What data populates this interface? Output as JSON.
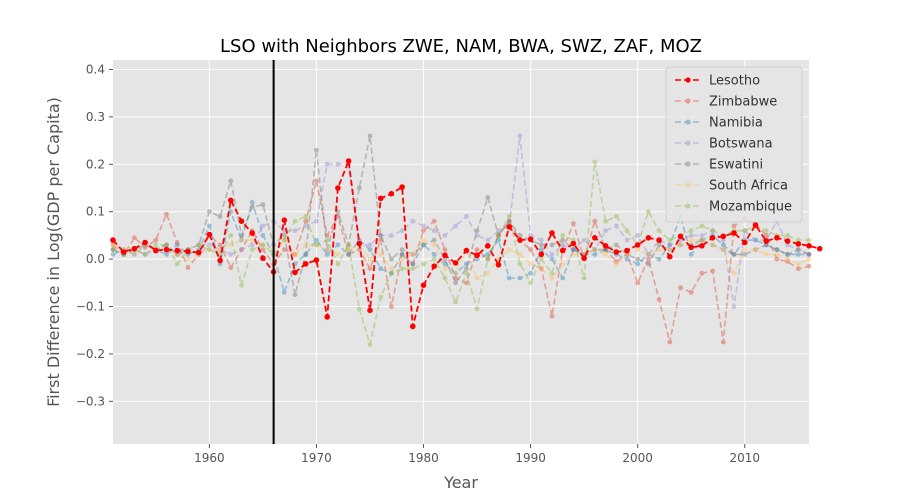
{
  "chart_data": {
    "type": "line",
    "title": "LSO with Neighbors ZWE, NAM, BWA, SWZ, ZAF, MOZ",
    "xlabel": "Year",
    "ylabel": "First Difference in Log(GDP per Capita)",
    "xlim": [
      1951,
      2016
    ],
    "ylim": [
      -0.39,
      0.42
    ],
    "xticks": [
      1960,
      1970,
      1980,
      1990,
      2000,
      2010
    ],
    "yticks": [
      -0.3,
      -0.2,
      -0.1,
      0.0,
      0.1,
      0.2,
      0.3,
      0.4
    ],
    "ytick_labels": [
      "−0.3",
      "−0.2",
      "−0.1",
      "0.0",
      "0.1",
      "0.2",
      "0.3",
      "0.4"
    ],
    "vline_x": 1966,
    "grid": true,
    "legend_position": "top-right",
    "series": [
      {
        "name": "Lesotho",
        "color": "#ff0000",
        "opacity": 1.0,
        "highlight": true,
        "start_year": 1951,
        "values": [
          0.04,
          0.015,
          0.022,
          0.035,
          0.018,
          0.02,
          0.018,
          0.016,
          0.014,
          0.052,
          -0.003,
          0.124,
          0.08,
          0.055,
          0.002,
          -0.027,
          0.082,
          -0.028,
          -0.01,
          -0.002,
          -0.122,
          0.15,
          0.207,
          0.033,
          -0.108,
          0.128,
          0.138,
          0.152,
          -0.142,
          -0.055,
          -0.015,
          0.008,
          -0.008,
          0.018,
          0.008,
          0.028,
          -0.012,
          0.068,
          0.04,
          0.042,
          0.01,
          0.055,
          0.018,
          0.033,
          0.002,
          0.045,
          0.028,
          0.015,
          0.018,
          0.03,
          0.045,
          0.04,
          0.005,
          0.048,
          0.025,
          0.028,
          0.045,
          0.048,
          0.055,
          0.035,
          0.072,
          0.038,
          0.045,
          0.038,
          0.032,
          0.028,
          0.022
        ]
      },
      {
        "name": "Zimbabwe",
        "color": "#e24a33",
        "opacity": 0.45,
        "highlight": false,
        "start_year": 1951,
        "values": [
          0.03,
          0.01,
          0.045,
          0.025,
          0.04,
          0.095,
          0.035,
          -0.018,
          0.01,
          0.05,
          0.03,
          -0.018,
          0.02,
          0.06,
          0.02,
          -0.01,
          0.02,
          0.01,
          0.08,
          0.165,
          0.05,
          0.09,
          0.01,
          0.02,
          -0.02,
          0.04,
          -0.1,
          0.01,
          -0.01,
          0.06,
          0.08,
          0.02,
          -0.04,
          -0.05,
          0.02,
          0.0,
          0.05,
          0.08,
          0.04,
          0.02,
          -0.02,
          -0.12,
          0.02,
          0.075,
          0.0,
          0.08,
          0.02,
          -0.005,
          0.01,
          -0.05,
          0.0,
          -0.085,
          -0.175,
          -0.06,
          -0.07,
          -0.03,
          -0.025,
          -0.175,
          0.07,
          0.085,
          0.075,
          0.05,
          0.0,
          -0.005,
          -0.02,
          -0.015
        ]
      },
      {
        "name": "Namibia",
        "color": "#348abd",
        "opacity": 0.45,
        "highlight": false,
        "start_year": 1951,
        "values": [
          0.01,
          0.02,
          0.01,
          0.03,
          0.02,
          0.01,
          0.03,
          0.01,
          0.02,
          0.07,
          -0.01,
          0.1,
          0.04,
          0.12,
          0.05,
          0.01,
          -0.07,
          -0.01,
          0.01,
          0.04,
          0.01,
          0.03,
          0.01,
          0.04,
          0.02,
          -0.02,
          -0.03,
          0.01,
          -0.01,
          0.03,
          0.01,
          -0.01,
          -0.03,
          -0.01,
          0.0,
          0.01,
          0.04,
          -0.04,
          -0.04,
          -0.03,
          0.02,
          0.0,
          -0.04,
          0.02,
          0.01,
          0.01,
          0.02,
          0.01,
          0.0,
          -0.01,
          0.01,
          0.0,
          0.03,
          0.09,
          0.01,
          0.04,
          0.05,
          0.03,
          0.01,
          0.04,
          0.04,
          0.03,
          0.02,
          0.01,
          0.01,
          0.01
        ]
      },
      {
        "name": "Botswana",
        "color": "#988ed5",
        "opacity": 0.45,
        "highlight": false,
        "start_year": 1951,
        "values": [
          0.02,
          0.01,
          0.02,
          0.01,
          0.02,
          0.03,
          0.01,
          0.02,
          0.01,
          0.03,
          0.02,
          0.01,
          0.02,
          0.03,
          0.07,
          0.08,
          0.06,
          0.06,
          0.07,
          0.08,
          0.2,
          0.2,
          0.2,
          0.03,
          0.03,
          0.05,
          0.05,
          0.06,
          0.08,
          0.07,
          0.06,
          0.05,
          0.07,
          0.09,
          0.05,
          0.04,
          0.06,
          0.07,
          0.26,
          0.05,
          0.04,
          0.01,
          0.03,
          0.02,
          0.04,
          0.02,
          0.06,
          0.07,
          0.04,
          0.05,
          0.01,
          0.04,
          0.03,
          0.04,
          0.05,
          0.05,
          0.06,
          0.04,
          -0.1,
          0.06,
          0.04,
          0.04,
          0.08,
          0.03,
          0.02,
          0.01
        ]
      },
      {
        "name": "Eswatini",
        "color": "#777777",
        "opacity": 0.45,
        "highlight": false,
        "start_year": 1951,
        "values": [
          0.02,
          0.01,
          0.02,
          0.03,
          0.02,
          0.03,
          0.01,
          0.02,
          0.03,
          0.1,
          0.09,
          0.165,
          0.05,
          0.11,
          0.115,
          0.03,
          0.05,
          -0.075,
          0.01,
          0.23,
          0.02,
          0.1,
          0.03,
          0.15,
          0.26,
          0.05,
          0.0,
          0.02,
          0.01,
          0.03,
          0.04,
          0.0,
          -0.05,
          -0.02,
          0.06,
          0.13,
          0.05,
          0.08,
          0.05,
          0.04,
          0.03,
          0.03,
          0.04,
          0.02,
          0.01,
          0.02,
          0.02,
          0.03,
          0.01,
          0.0,
          -0.01,
          0.03,
          0.02,
          0.03,
          0.03,
          0.04,
          0.03,
          0.02,
          0.01,
          0.01,
          0.02,
          0.03,
          0.02,
          0.01,
          0.02,
          0.01
        ]
      },
      {
        "name": "South Africa",
        "color": "#fbc15e",
        "opacity": 0.45,
        "highlight": false,
        "start_year": 1951,
        "values": [
          0.03,
          0.02,
          0.01,
          0.03,
          0.02,
          0.02,
          0.01,
          0.0,
          0.01,
          0.02,
          0.02,
          0.03,
          0.04,
          0.04,
          0.03,
          0.02,
          0.04,
          0.01,
          0.03,
          0.03,
          0.02,
          0.01,
          0.02,
          0.03,
          0.0,
          0.01,
          -0.02,
          0.0,
          0.01,
          0.04,
          0.03,
          -0.02,
          -0.03,
          0.02,
          -0.04,
          -0.03,
          0.0,
          0.02,
          0.01,
          -0.01,
          -0.02,
          -0.04,
          -0.01,
          0.01,
          0.01,
          0.02,
          0.01,
          -0.01,
          0.01,
          0.02,
          0.01,
          0.02,
          0.02,
          0.03,
          0.04,
          0.04,
          0.03,
          0.02,
          -0.03,
          0.02,
          0.02,
          0.01,
          0.01,
          0.0,
          -0.01,
          0.0
        ]
      },
      {
        "name": "Mozambique",
        "color": "#8eba42",
        "opacity": 0.45,
        "highlight": false,
        "start_year": 1951,
        "values": [
          0.02,
          0.01,
          0.02,
          0.01,
          0.03,
          0.03,
          -0.01,
          0.02,
          0.03,
          0.02,
          0.01,
          0.05,
          -0.055,
          0.02,
          0.03,
          0.01,
          0.04,
          0.08,
          0.09,
          0.03,
          0.04,
          -0.01,
          0.03,
          -0.105,
          -0.18,
          -0.08,
          -0.03,
          -0.02,
          -0.02,
          -0.01,
          0.0,
          -0.04,
          -0.09,
          -0.03,
          -0.105,
          0.0,
          0.05,
          0.09,
          -0.01,
          -0.05,
          0.0,
          -0.03,
          0.05,
          0.04,
          -0.04,
          0.205,
          0.08,
          0.09,
          0.06,
          0.03,
          0.1,
          0.06,
          0.04,
          0.05,
          0.06,
          0.07,
          0.06,
          0.05,
          0.06,
          0.06,
          0.07,
          0.06,
          0.05,
          0.05,
          0.04,
          0.04
        ]
      }
    ]
  }
}
